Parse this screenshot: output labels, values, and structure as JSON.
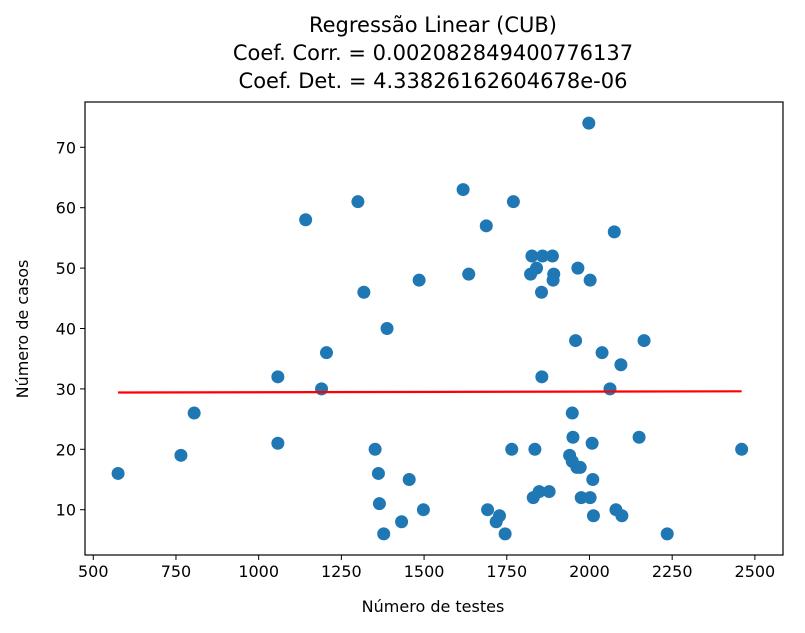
{
  "chart_data": {
    "type": "scatter",
    "title_lines": [
      "Regressão Linear (CUB)",
      "Coef. Corr. = 0.002082849400776137",
      "Coef. Det. = 4.33826162604678e-06"
    ],
    "xlabel": "Número de testes",
    "ylabel": "Número de casos",
    "xlim": [
      475,
      2585
    ],
    "ylim": [
      2.5,
      77.5
    ],
    "xticks": [
      500,
      750,
      1000,
      1250,
      1500,
      1750,
      2000,
      2250,
      2500
    ],
    "yticks": [
      10,
      20,
      30,
      40,
      50,
      60,
      70
    ],
    "xtick_labels": [
      "500",
      "750",
      "1000",
      "1250",
      "1500",
      "1750",
      "2000",
      "2250",
      "2500"
    ],
    "ytick_labels": [
      "10",
      "20",
      "30",
      "40",
      "50",
      "60",
      "70"
    ],
    "grid": false,
    "colors": {
      "points": "#1f77b4",
      "regression": "#ff0000"
    },
    "points": [
      {
        "x": 575,
        "y": 16
      },
      {
        "x": 765,
        "y": 19
      },
      {
        "x": 805,
        "y": 26
      },
      {
        "x": 1058,
        "y": 32
      },
      {
        "x": 1058,
        "y": 21
      },
      {
        "x": 1142,
        "y": 58
      },
      {
        "x": 1190,
        "y": 30
      },
      {
        "x": 1205,
        "y": 36
      },
      {
        "x": 1300,
        "y": 61
      },
      {
        "x": 1318,
        "y": 46
      },
      {
        "x": 1352,
        "y": 20
      },
      {
        "x": 1362,
        "y": 16
      },
      {
        "x": 1365,
        "y": 11
      },
      {
        "x": 1378,
        "y": 6
      },
      {
        "x": 1388,
        "y": 40
      },
      {
        "x": 1432,
        "y": 8
      },
      {
        "x": 1455,
        "y": 15
      },
      {
        "x": 1485,
        "y": 48
      },
      {
        "x": 1498,
        "y": 10
      },
      {
        "x": 1618,
        "y": 63
      },
      {
        "x": 1635,
        "y": 49
      },
      {
        "x": 1688,
        "y": 57
      },
      {
        "x": 1692,
        "y": 10
      },
      {
        "x": 1718,
        "y": 8
      },
      {
        "x": 1728,
        "y": 9
      },
      {
        "x": 1745,
        "y": 6
      },
      {
        "x": 1765,
        "y": 20
      },
      {
        "x": 1770,
        "y": 61
      },
      {
        "x": 1822,
        "y": 49
      },
      {
        "x": 1826,
        "y": 52
      },
      {
        "x": 1830,
        "y": 12
      },
      {
        "x": 1835,
        "y": 20
      },
      {
        "x": 1840,
        "y": 50
      },
      {
        "x": 1848,
        "y": 13
      },
      {
        "x": 1855,
        "y": 46
      },
      {
        "x": 1856,
        "y": 32
      },
      {
        "x": 1858,
        "y": 52
      },
      {
        "x": 1878,
        "y": 13
      },
      {
        "x": 1888,
        "y": 52
      },
      {
        "x": 1890,
        "y": 48
      },
      {
        "x": 1892,
        "y": 49
      },
      {
        "x": 1940,
        "y": 19
      },
      {
        "x": 1948,
        "y": 26
      },
      {
        "x": 1948,
        "y": 18
      },
      {
        "x": 1950,
        "y": 22
      },
      {
        "x": 1958,
        "y": 38
      },
      {
        "x": 1962,
        "y": 17
      },
      {
        "x": 1965,
        "y": 50
      },
      {
        "x": 1972,
        "y": 17
      },
      {
        "x": 1975,
        "y": 12
      },
      {
        "x": 1998,
        "y": 74
      },
      {
        "x": 2002,
        "y": 48
      },
      {
        "x": 2002,
        "y": 12
      },
      {
        "x": 2008,
        "y": 21
      },
      {
        "x": 2010,
        "y": 15
      },
      {
        "x": 2012,
        "y": 9
      },
      {
        "x": 2038,
        "y": 36
      },
      {
        "x": 2062,
        "y": 30
      },
      {
        "x": 2075,
        "y": 56
      },
      {
        "x": 2080,
        "y": 10
      },
      {
        "x": 2095,
        "y": 34
      },
      {
        "x": 2098,
        "y": 9
      },
      {
        "x": 2150,
        "y": 22
      },
      {
        "x": 2165,
        "y": 38
      },
      {
        "x": 2235,
        "y": 6
      },
      {
        "x": 2460,
        "y": 20
      }
    ],
    "regression_line": {
      "x": [
        575,
        2460
      ],
      "y": [
        29.4,
        29.6
      ]
    }
  }
}
